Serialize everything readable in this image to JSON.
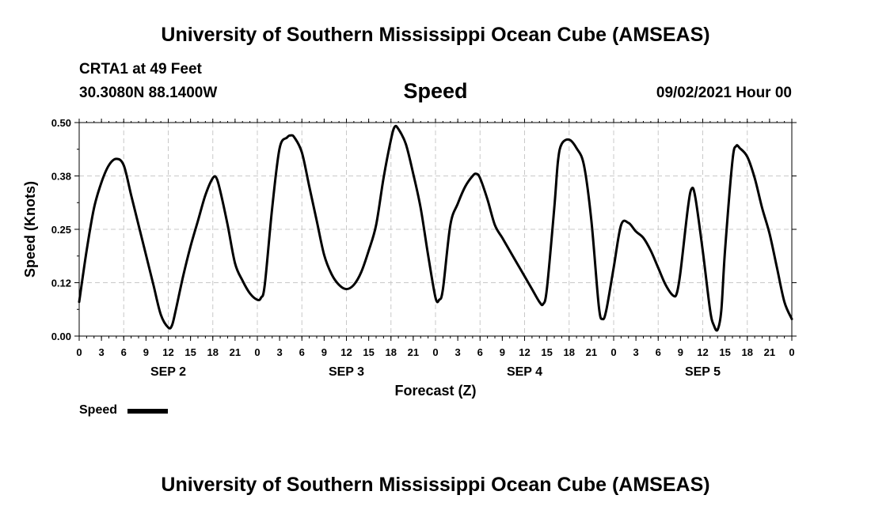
{
  "header": {
    "title": "University of Southern Mississippi Ocean Cube (AMSEAS)",
    "station": "CRTA1 at 49 Feet",
    "coords": "30.3080N  88.1400W",
    "variable": "Speed",
    "run_time": "09/02/2021 Hour 00"
  },
  "footer": {
    "title": "University of Southern Mississippi Ocean Cube (AMSEAS)"
  },
  "chart_data": {
    "type": "line",
    "title": "Speed",
    "xlabel": "Forecast (Z)",
    "ylabel": "Speed (Knots)",
    "xlim": [
      0,
      96
    ],
    "ylim": [
      0,
      0.5
    ],
    "grid": true,
    "y_ticks": [
      0,
      0.125,
      0.25,
      0.375,
      0.5
    ],
    "y_tick_labels": [
      "0.00",
      "0.12",
      "0.25",
      "0.38",
      "0.50"
    ],
    "x_ticks": [
      0,
      3,
      6,
      9,
      12,
      15,
      18,
      21,
      24,
      27,
      30,
      33,
      36,
      39,
      42,
      45,
      48,
      51,
      54,
      57,
      60,
      63,
      66,
      69,
      72,
      75,
      78,
      81,
      84,
      87,
      90,
      93,
      96
    ],
    "x_tick_labels": [
      "0",
      "3",
      "6",
      "9",
      "12",
      "15",
      "18",
      "21",
      "0",
      "3",
      "6",
      "9",
      "12",
      "15",
      "18",
      "21",
      "0",
      "3",
      "6",
      "9",
      "12",
      "15",
      "18",
      "21",
      "0",
      "3",
      "6",
      "9",
      "12",
      "15",
      "18",
      "21",
      "0"
    ],
    "day_labels": [
      {
        "label": "SEP 2",
        "hour": 12
      },
      {
        "label": "SEP 3",
        "hour": 36
      },
      {
        "label": "SEP 4",
        "hour": 60
      },
      {
        "label": "SEP 5",
        "hour": 84
      }
    ],
    "legend": "bottom-left",
    "series": [
      {
        "name": "Speed",
        "color": "#000000",
        "points": [
          [
            0,
            0.08
          ],
          [
            1,
            0.2
          ],
          [
            2,
            0.3
          ],
          [
            3,
            0.36
          ],
          [
            4,
            0.4
          ],
          [
            5,
            0.415
          ],
          [
            6,
            0.4
          ],
          [
            7,
            0.33
          ],
          [
            8,
            0.26
          ],
          [
            9,
            0.19
          ],
          [
            10,
            0.12
          ],
          [
            11,
            0.05
          ],
          [
            12,
            0.02
          ],
          [
            12.5,
            0.025
          ],
          [
            13,
            0.06
          ],
          [
            14,
            0.14
          ],
          [
            15,
            0.21
          ],
          [
            16,
            0.27
          ],
          [
            17,
            0.33
          ],
          [
            18,
            0.37
          ],
          [
            18.5,
            0.37
          ],
          [
            19,
            0.34
          ],
          [
            20,
            0.26
          ],
          [
            21,
            0.17
          ],
          [
            22,
            0.13
          ],
          [
            23,
            0.1
          ],
          [
            24,
            0.085
          ],
          [
            24.5,
            0.09
          ],
          [
            25,
            0.12
          ],
          [
            26,
            0.3
          ],
          [
            27,
            0.44
          ],
          [
            28,
            0.465
          ],
          [
            28.5,
            0.47
          ],
          [
            29,
            0.465
          ],
          [
            30,
            0.43
          ],
          [
            31,
            0.35
          ],
          [
            32,
            0.27
          ],
          [
            33,
            0.19
          ],
          [
            34,
            0.145
          ],
          [
            35,
            0.12
          ],
          [
            36,
            0.11
          ],
          [
            37,
            0.12
          ],
          [
            38,
            0.15
          ],
          [
            39,
            0.2
          ],
          [
            40,
            0.26
          ],
          [
            41,
            0.37
          ],
          [
            42,
            0.46
          ],
          [
            42.5,
            0.49
          ],
          [
            43,
            0.485
          ],
          [
            44,
            0.45
          ],
          [
            45,
            0.38
          ],
          [
            46,
            0.3
          ],
          [
            47,
            0.19
          ],
          [
            48,
            0.09
          ],
          [
            48.5,
            0.085
          ],
          [
            49,
            0.11
          ],
          [
            50,
            0.26
          ],
          [
            51,
            0.31
          ],
          [
            52,
            0.35
          ],
          [
            53,
            0.375
          ],
          [
            53.5,
            0.38
          ],
          [
            54,
            0.37
          ],
          [
            55,
            0.32
          ],
          [
            56,
            0.26
          ],
          [
            57,
            0.23
          ],
          [
            58,
            0.2
          ],
          [
            59,
            0.17
          ],
          [
            60,
            0.14
          ],
          [
            61,
            0.11
          ],
          [
            62,
            0.08
          ],
          [
            62.5,
            0.075
          ],
          [
            63,
            0.11
          ],
          [
            64,
            0.3
          ],
          [
            64.5,
            0.41
          ],
          [
            65,
            0.45
          ],
          [
            66,
            0.46
          ],
          [
            67,
            0.44
          ],
          [
            68,
            0.4
          ],
          [
            69,
            0.27
          ],
          [
            70,
            0.07
          ],
          [
            70.5,
            0.04
          ],
          [
            71,
            0.06
          ],
          [
            72,
            0.16
          ],
          [
            73,
            0.26
          ],
          [
            74,
            0.265
          ],
          [
            75,
            0.245
          ],
          [
            76,
            0.23
          ],
          [
            77,
            0.2
          ],
          [
            78,
            0.16
          ],
          [
            79,
            0.12
          ],
          [
            80,
            0.095
          ],
          [
            80.5,
            0.1
          ],
          [
            81,
            0.15
          ],
          [
            82,
            0.3
          ],
          [
            82.5,
            0.345
          ],
          [
            83,
            0.325
          ],
          [
            84,
            0.2
          ],
          [
            85,
            0.06
          ],
          [
            85.5,
            0.025
          ],
          [
            86,
            0.015
          ],
          [
            86.5,
            0.06
          ],
          [
            87,
            0.2
          ],
          [
            88,
            0.41
          ],
          [
            88.5,
            0.445
          ],
          [
            89,
            0.44
          ],
          [
            90,
            0.42
          ],
          [
            91,
            0.37
          ],
          [
            92,
            0.3
          ],
          [
            93,
            0.24
          ],
          [
            94,
            0.16
          ],
          [
            95,
            0.08
          ],
          [
            96,
            0.04
          ]
        ]
      }
    ]
  }
}
